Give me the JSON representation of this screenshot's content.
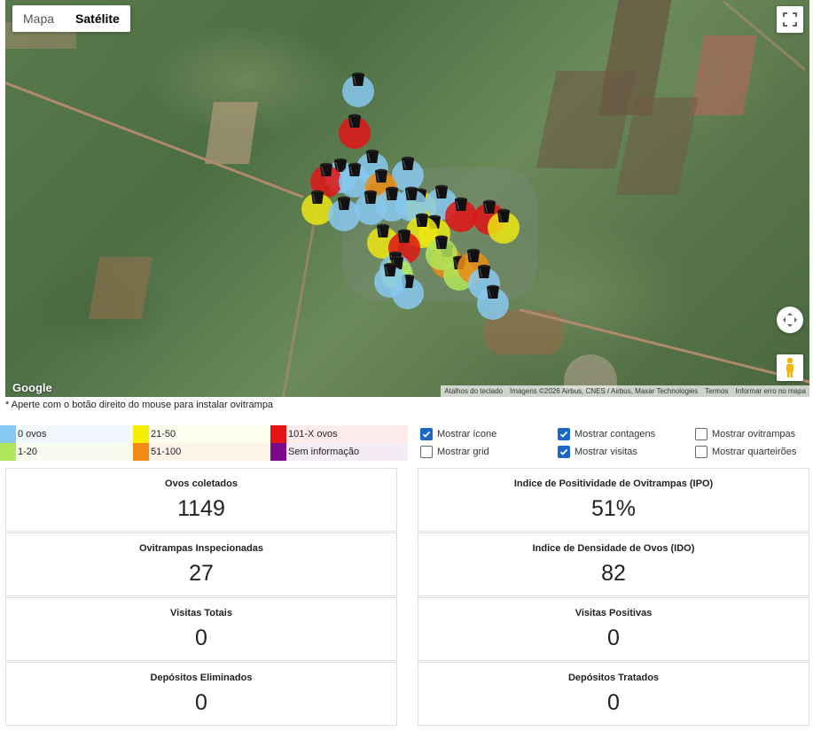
{
  "map": {
    "type_controls": {
      "map": "Mapa",
      "satellite": "Satélite"
    },
    "google_logo": "Google",
    "attribution": {
      "shortcuts": "Atalhos do teclado",
      "imagery": "Imagens ©2026 Airbus, CNES / Airbus, Maxar Technologies",
      "terms": "Termos",
      "report": "Informar erro no mapa"
    },
    "traps": [
      {
        "color": "blue"
      },
      {
        "color": "red"
      },
      {
        "color": "blue"
      },
      {
        "color": "red"
      },
      {
        "color": "blue"
      },
      {
        "color": "blue"
      },
      {
        "color": "yellow"
      },
      {
        "color": "yellow"
      },
      {
        "color": "blue"
      },
      {
        "color": "orange"
      },
      {
        "color": "blue"
      },
      {
        "color": "blue"
      },
      {
        "color": "blue"
      },
      {
        "color": "blue"
      },
      {
        "color": "blue"
      },
      {
        "color": "yellow"
      },
      {
        "color": "orange"
      },
      {
        "color": "red"
      },
      {
        "color": "red"
      },
      {
        "color": "yellow"
      },
      {
        "color": "yellow"
      },
      {
        "color": "yellow"
      },
      {
        "color": "green"
      },
      {
        "color": "red"
      },
      {
        "color": "blue"
      },
      {
        "color": "green"
      },
      {
        "color": "orange"
      },
      {
        "color": "blue"
      },
      {
        "color": "blue"
      },
      {
        "color": "green"
      },
      {
        "color": "blue"
      },
      {
        "color": "blue"
      }
    ]
  },
  "hint": "* Aperte com o botão direito do mouse para instalar ovitrampa",
  "legend": [
    {
      "label": "0 ovos",
      "color": "#87c8f0",
      "bg": "#f0f8fe"
    },
    {
      "label": "21-50",
      "color": "#f5f000",
      "bg": "#fefef0"
    },
    {
      "label": "101-X ovos",
      "color": "#e41414",
      "bg": "#fdeceb"
    },
    {
      "label": "1-20",
      "color": "#b0e65a",
      "bg": "#f7fcef"
    },
    {
      "label": "51-100",
      "color": "#f08a14",
      "bg": "#fef3e8"
    },
    {
      "label": "Sem informação",
      "color": "#7a0a8a",
      "bg": "#f4ebf5"
    }
  ],
  "options": [
    {
      "label": "Mostrar ícone",
      "checked": true
    },
    {
      "label": "Mostrar contagens",
      "checked": true
    },
    {
      "label": "Mostrar ovitrampas",
      "checked": false
    },
    {
      "label": "Mostrar grid",
      "checked": false
    },
    {
      "label": "Mostrar visitas",
      "checked": true
    },
    {
      "label": "Mostrar quarteirões",
      "checked": false
    }
  ],
  "stats": [
    {
      "label": "Ovos coletados",
      "value": "1149"
    },
    {
      "label": "Indice de Positividade de Ovitrampas (IPO)",
      "value": "51%"
    },
    {
      "label": "Ovitrampas Inspecionadas",
      "value": "27"
    },
    {
      "label": "Indice de Densidade de Ovos (IDO)",
      "value": "82"
    },
    {
      "label": "Visitas Totais",
      "value": "0"
    },
    {
      "label": "Visitas Positivas",
      "value": "0"
    },
    {
      "label": "Depósitos Eliminados",
      "value": "0"
    },
    {
      "label": "Depósitos Tratados",
      "value": "0"
    }
  ]
}
